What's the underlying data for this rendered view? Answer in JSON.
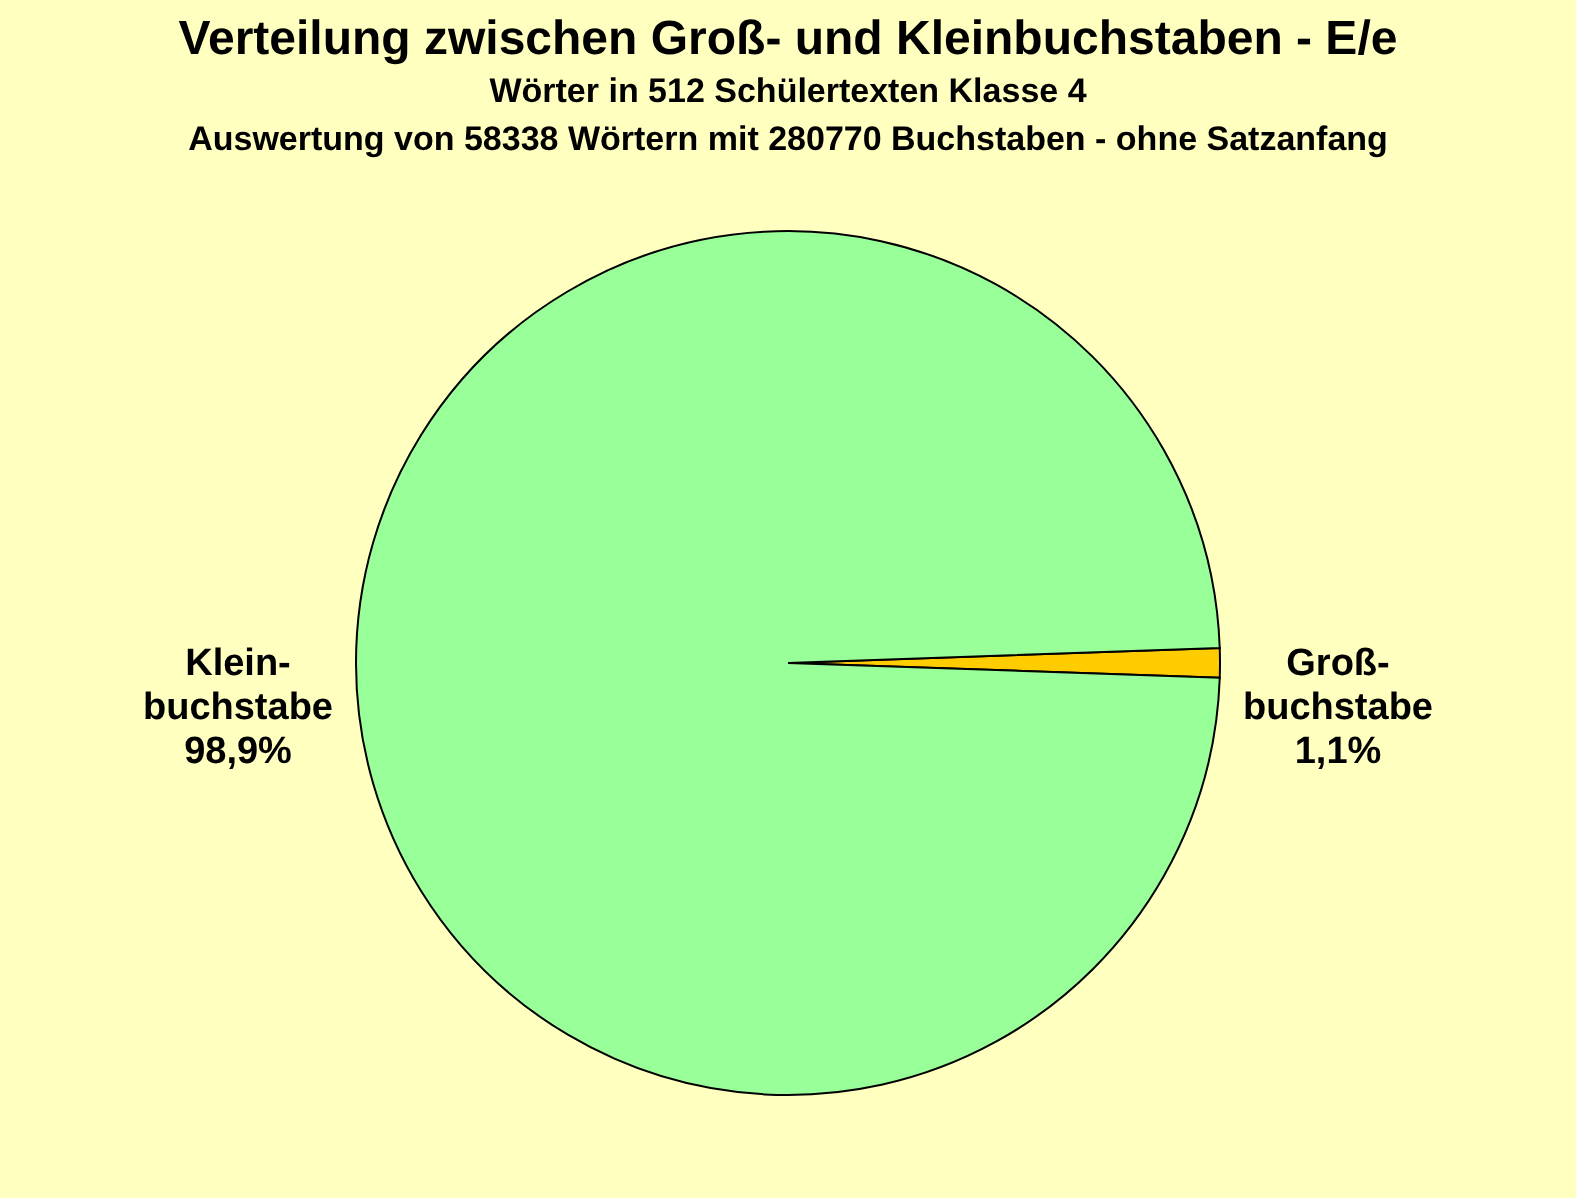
{
  "chart_data": {
    "type": "pie",
    "title": "Verteilung zwischen Groß- und  Kleinbuchstaben - E/e",
    "subtitle": "Wörter in 512 Schülertexten Klasse 4\nAuswertung von 58338 Wörtern mit 280770 Buchstaben - ohne Satzanfang",
    "categories": [
      "Groß-\nbuchstabe",
      "Klein-\nbuchstabe"
    ],
    "values": [
      1.1,
      98.9
    ],
    "value_labels": [
      "1,1%",
      "98,9%"
    ],
    "colors": [
      "#ffcc00",
      "#99ff99"
    ],
    "legend": false
  }
}
